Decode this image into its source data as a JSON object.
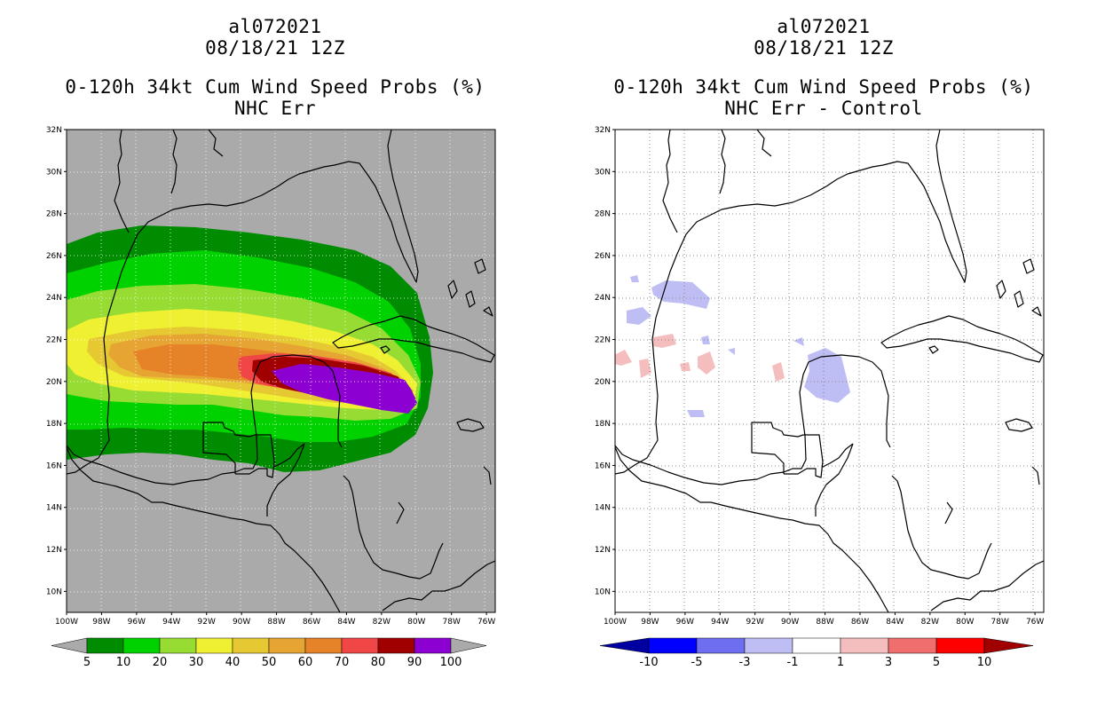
{
  "left_panel": {
    "storm_id": "al072021",
    "datetime": "08/18/21 12Z",
    "product": "0-120h 34kt Cum Wind Speed Probs (%)",
    "subtitle": "NHC Err",
    "colorbar_labels": [
      "5",
      "10",
      "20",
      "30",
      "40",
      "50",
      "60",
      "70",
      "80",
      "90",
      "100"
    ],
    "colorbar_colors": [
      "#008c00",
      "#00d200",
      "#96dc32",
      "#f0f032",
      "#e6c832",
      "#e6a532",
      "#e68228",
      "#f04646",
      "#a00000",
      "#8c00d2"
    ]
  },
  "right_panel": {
    "storm_id": "al072021",
    "datetime": "08/18/21 12Z",
    "product": "0-120h 34kt Cum Wind Speed Probs (%)",
    "subtitle": "NHC Err - Control",
    "colorbar_labels": [
      "-10",
      "-5",
      "-3",
      "-1",
      "1",
      "3",
      "5",
      "10"
    ],
    "colorbar_colors": [
      "#0000a0",
      "#0000ff",
      "#6e6ef0",
      "#bebef5",
      "#ffffff",
      "#f5bebe",
      "#f06e6e",
      "#ff0000",
      "#a00000"
    ]
  },
  "axes": {
    "lat_labels": [
      "32N",
      "30N",
      "28N",
      "26N",
      "24N",
      "22N",
      "20N",
      "18N",
      "16N",
      "14N",
      "12N",
      "10N"
    ],
    "lon_labels": [
      "100W",
      "98W",
      "96W",
      "94W",
      "92W",
      "90W",
      "88W",
      "86W",
      "84W",
      "82W",
      "80W",
      "78W",
      "76W"
    ]
  },
  "map_extent": {
    "lon_min": -100,
    "lon_max": -75.5,
    "lat_min": 9,
    "lat_max": 32
  },
  "colors": {
    "land_bg": "#aaaaaa",
    "coastline": "#000000",
    "grid": "#cccccc"
  }
}
